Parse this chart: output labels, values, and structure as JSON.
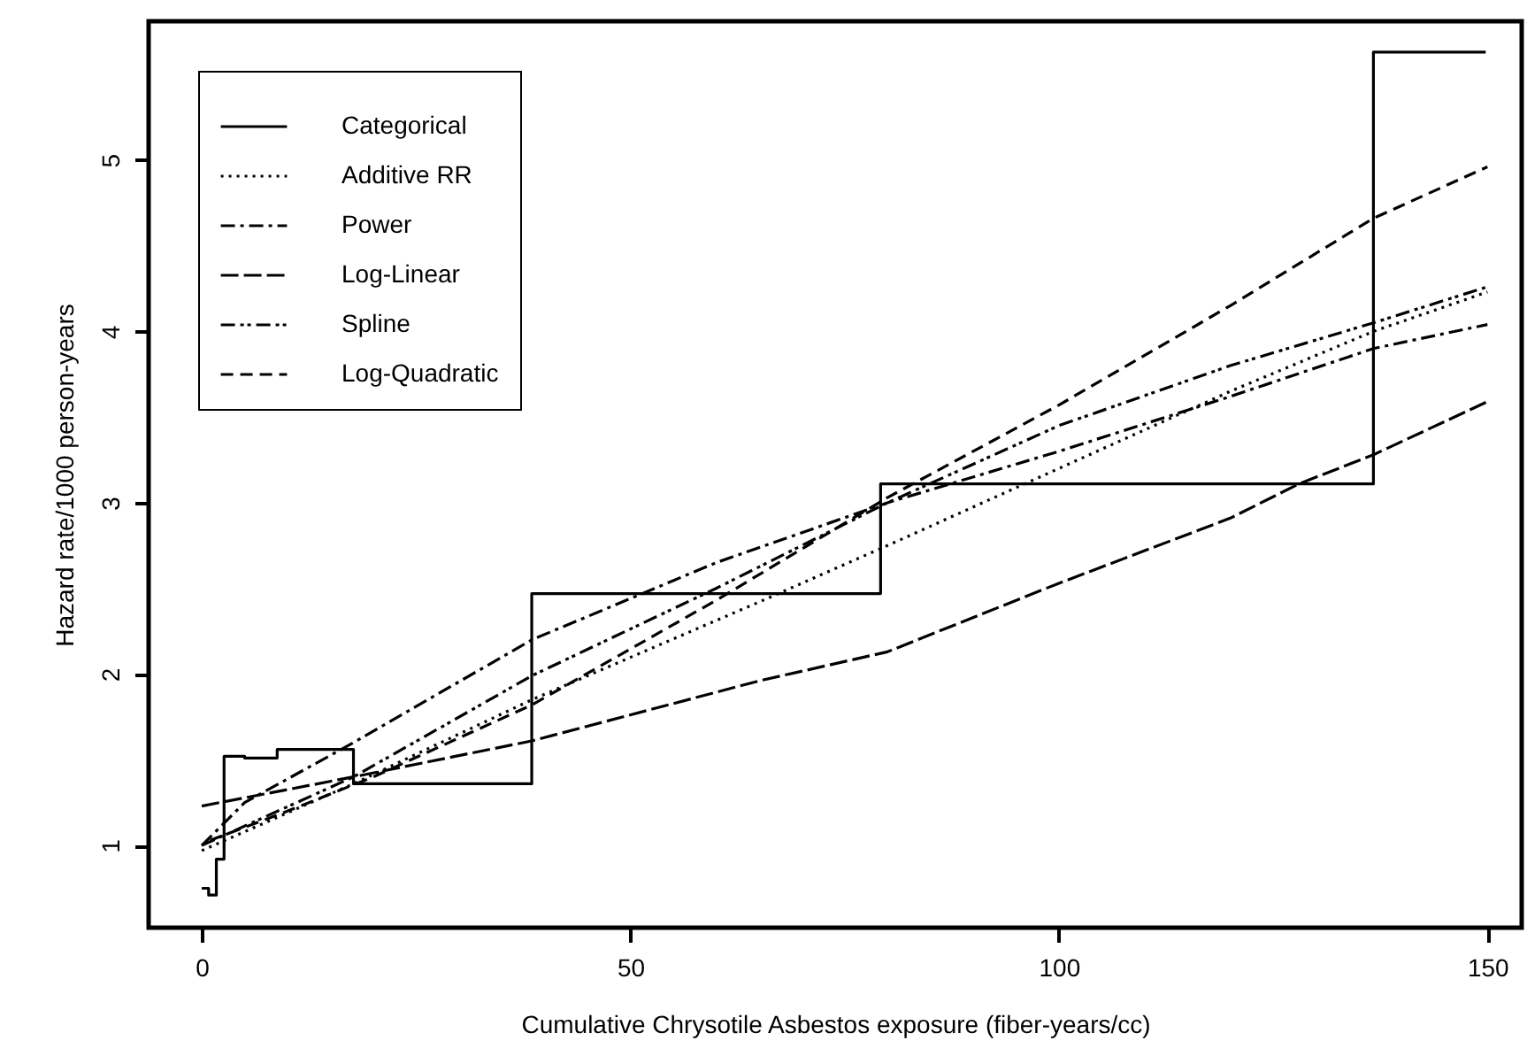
{
  "chart_data": {
    "type": "line",
    "xlabel": "Cumulative Chrysotile Asbestos exposure (fiber-years/cc)",
    "ylabel": "Hazard rate/1000 person-years",
    "xlim": [
      -6.2,
      154
    ],
    "xticks": [
      0,
      50,
      100,
      150
    ],
    "ylim": [
      0.52,
      5.81
    ],
    "yticks": [
      {
        "value": 1,
        "label": "1"
      },
      {
        "value": 2,
        "label": "2"
      },
      {
        "value": 3,
        "label": "3"
      },
      {
        "value": 4,
        "label": "4"
      },
      {
        "value": 5,
        "label": "5"
      }
    ],
    "legend": "top left",
    "series": [
      {
        "name": "Categorical",
        "type": "step",
        "color": "#000000",
        "line_style": "solid",
        "x": [
          0,
          0.8,
          1.7,
          2.6,
          5,
          8.8,
          17.7,
          38.5,
          79.2,
          136.7,
          149.8
        ],
        "values": [
          0.75,
          0.71,
          0.92,
          1.52,
          1.51,
          1.56,
          1.36,
          2.47,
          3.11,
          5.63,
          5.63
        ]
      },
      {
        "name": "Additive RR",
        "color": "#000000",
        "line_style": "dotted",
        "x": [
          0,
          17.7,
          38.5,
          65,
          80,
          100,
          120,
          136.7,
          150
        ],
        "values": [
          0.97,
          1.36,
          1.85,
          2.42,
          2.75,
          3.2,
          3.65,
          4.0,
          4.23
        ]
      },
      {
        "name": "Power",
        "color": "#000000",
        "line_style": "dashdot",
        "x": [
          0,
          5,
          17.7,
          38.5,
          60,
          80,
          100,
          120,
          136.7,
          150
        ],
        "values": [
          1.0,
          1.25,
          1.6,
          2.2,
          2.65,
          3.0,
          3.3,
          3.62,
          3.9,
          4.04
        ]
      },
      {
        "name": "Log-Linear",
        "color": "#000000",
        "line_style": "longdash",
        "x": [
          0,
          17.7,
          38.5,
          65,
          80,
          100,
          120,
          128,
          136.7,
          150
        ],
        "values": [
          1.23,
          1.4,
          1.61,
          1.96,
          2.13,
          2.53,
          2.91,
          3.11,
          3.28,
          3.59
        ]
      },
      {
        "name": "Spline",
        "color": "#000000",
        "line_style": "dashdotdot",
        "x": [
          0,
          17.7,
          38.5,
          60,
          80,
          100,
          120,
          136.7,
          150
        ],
        "values": [
          1.0,
          1.4,
          1.99,
          2.5,
          3.0,
          3.45,
          3.8,
          4.05,
          4.26
        ]
      },
      {
        "name": "Log-Quadratic",
        "color": "#000000",
        "line_style": "dashed",
        "x": [
          1,
          10,
          20,
          38.5,
          60,
          80,
          100,
          120,
          136.7,
          150
        ],
        "values": [
          1.03,
          1.2,
          1.4,
          1.82,
          2.43,
          3.03,
          3.57,
          4.15,
          4.66,
          4.96
        ]
      }
    ]
  }
}
